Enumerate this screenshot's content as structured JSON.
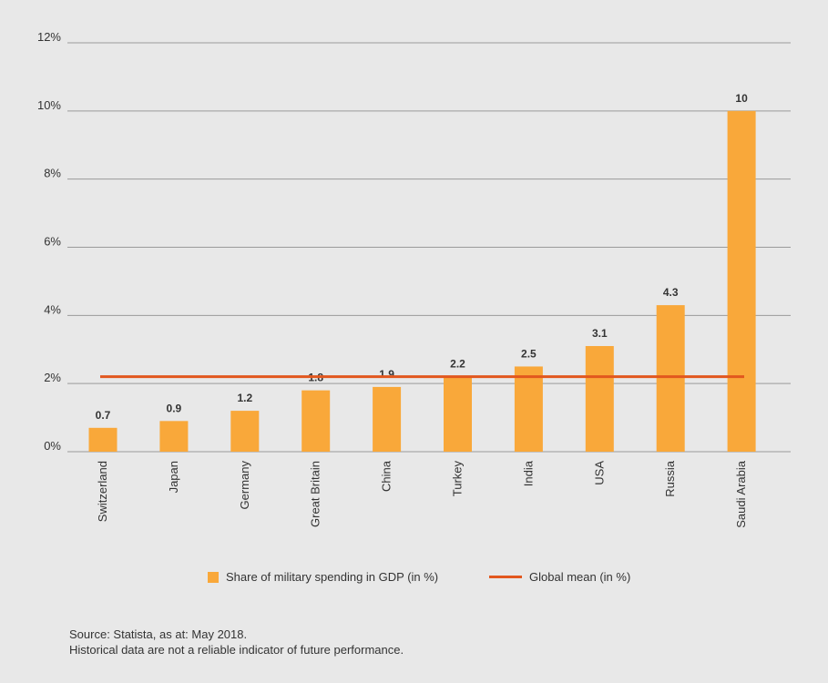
{
  "chart_data": {
    "type": "bar",
    "categories": [
      "Switzerland",
      "Japan",
      "Germany",
      "Great Britain",
      "China",
      "Turkey",
      "India",
      "USA",
      "Russia",
      "Saudi Arabia"
    ],
    "values": [
      0.7,
      0.9,
      1.2,
      1.8,
      1.9,
      2.2,
      2.5,
      3.1,
      4.3,
      10
    ],
    "value_labels": [
      "0.7",
      "0.9",
      "1.2",
      "1.8",
      "1.9",
      "2.2",
      "2.5",
      "3.1",
      "4.3",
      "10"
    ],
    "mean": 2.2,
    "ylim": [
      0,
      12
    ],
    "yticks": [
      0,
      2,
      4,
      6,
      8,
      10,
      12
    ],
    "ytick_labels": [
      "0%",
      "2%",
      "4%",
      "6%",
      "8%",
      "10%",
      "12%"
    ],
    "title": "",
    "xlabel": "",
    "ylabel": "",
    "legend": {
      "bar_label": "Share of military spending in GDP (in %)",
      "line_label": "Global mean (in %)"
    }
  },
  "colors": {
    "bar": "#f9a83a",
    "mean_line": "#e2571e",
    "grid": "#9a9a9a",
    "text": "#333333",
    "background": "#e8e8e8"
  },
  "footer": {
    "source": "Source: Statista, as at: May 2018.",
    "disclaimer": "Historical data are not a reliable indicator of future performance."
  }
}
